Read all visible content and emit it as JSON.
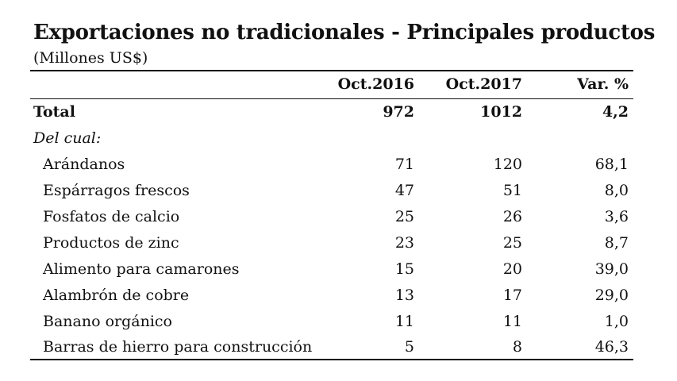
{
  "title": "Exportaciones no tradicionales - Principales productos",
  "subtitle": "(Millones US$)",
  "table": {
    "headers": [
      "Oct.2016",
      "Oct.2017",
      "Var. %"
    ],
    "total": {
      "label": "Total",
      "values": [
        "972",
        "1012",
        "4,2"
      ]
    },
    "section_label": "Del cual:",
    "rows": [
      {
        "label": "Arándanos",
        "values": [
          "71",
          "120",
          "68,1"
        ]
      },
      {
        "label": "Espárragos frescos",
        "values": [
          "47",
          "51",
          "8,0"
        ]
      },
      {
        "label": "Fosfatos de calcio",
        "values": [
          "25",
          "26",
          "3,6"
        ]
      },
      {
        "label": "Productos de zinc",
        "values": [
          "23",
          "25",
          "8,7"
        ]
      },
      {
        "label": "Alimento para camarones",
        "values": [
          "15",
          "20",
          "39,0"
        ]
      },
      {
        "label": "Alambrón de cobre",
        "values": [
          "13",
          "17",
          "29,0"
        ]
      },
      {
        "label": "Banano orgánico",
        "values": [
          "11",
          "11",
          "1,0"
        ]
      },
      {
        "label": "Barras de hierro para construcción",
        "values": [
          "5",
          "8",
          "46,3"
        ]
      }
    ]
  }
}
